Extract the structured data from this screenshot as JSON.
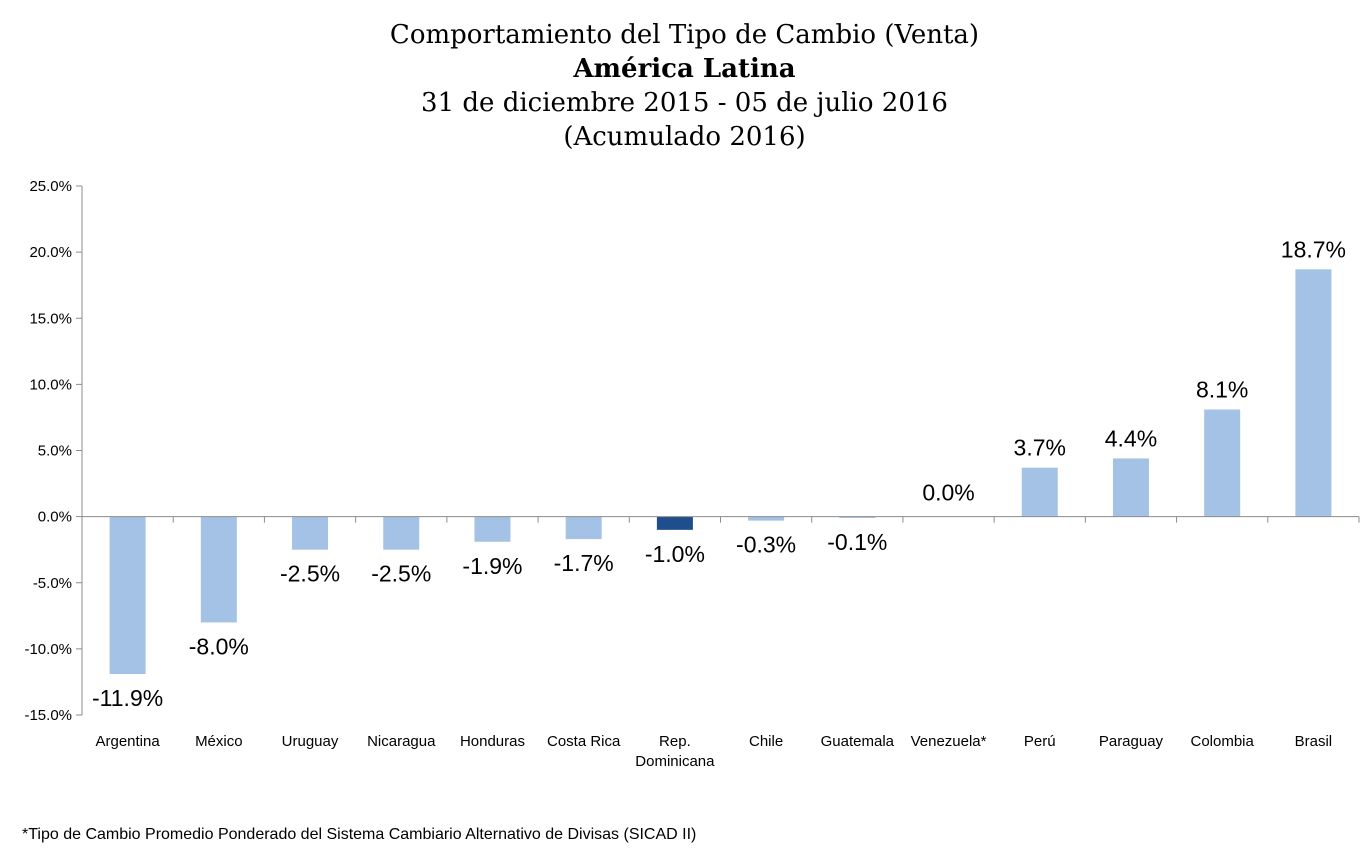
{
  "chart_data": {
    "type": "bar",
    "title": "Comportamiento del Tipo de Cambio (Venta)",
    "subtitle": "América Latina",
    "date_range": "31 de diciembre 2015 - 05 de julio 2016",
    "note": "(Acumulado 2016)",
    "categories": [
      "Argentina",
      "México",
      "Uruguay",
      "Nicaragua",
      "Honduras",
      "Costa Rica",
      "Rep. Dominicana",
      "Chile",
      "Guatemala",
      "Venezuela*",
      "Perú",
      "Paraguay",
      "Colombia",
      "Brasil"
    ],
    "values": [
      -11.9,
      -8.0,
      -2.5,
      -2.5,
      -1.9,
      -1.7,
      -1.0,
      -0.3,
      -0.1,
      0.0,
      3.7,
      4.4,
      8.1,
      18.7
    ],
    "data_labels": [
      "-11.9%",
      "-8.0%",
      "-2.5%",
      "-2.5%",
      "-1.9%",
      "-1.7%",
      "-1.0%",
      "-0.3%",
      "-0.1%",
      "0.0%",
      "3.7%",
      "4.4%",
      "8.1%",
      "18.7%"
    ],
    "highlight_category": "Rep. Dominicana",
    "ylim": [
      -15,
      25
    ],
    "yticks": [
      -15,
      -10,
      -5,
      0,
      5,
      10,
      15,
      20,
      25
    ],
    "ytick_labels": [
      "-15.0%",
      "-10.0%",
      "-5.0%",
      "0.0%",
      "5.0%",
      "10.0%",
      "15.0%",
      "20.0%",
      "25.0%"
    ],
    "xlabel": "",
    "ylabel": "",
    "grid": false,
    "legend": "none",
    "colors": {
      "bar": "#a3c2e6",
      "highlight": "#1f4e8c",
      "axis": "#8c8c8c"
    }
  },
  "footnote": "*Tipo de Cambio Promedio Ponderado del Sistema Cambiario Alternativo de Divisas (SICAD II)"
}
